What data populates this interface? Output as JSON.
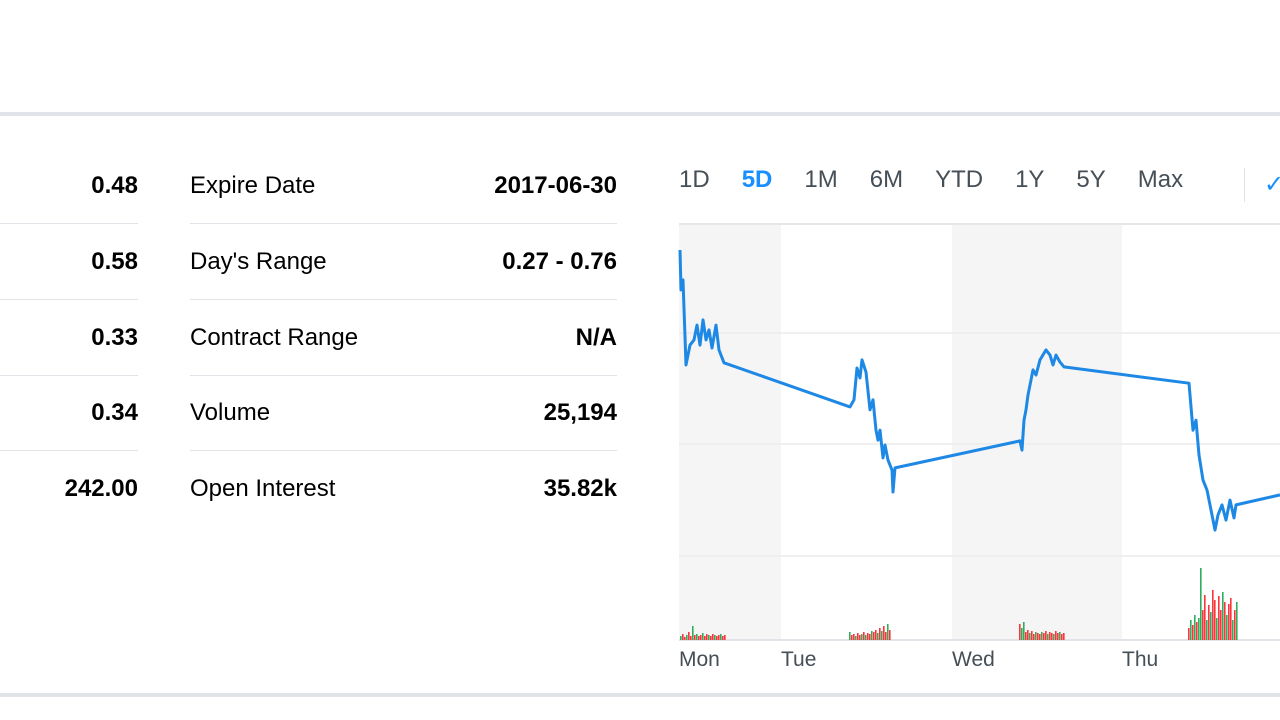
{
  "left_stats": [
    "0.48",
    "0.58",
    "0.33",
    "0.34",
    "242.00"
  ],
  "middle_stats": [
    {
      "label": "Expire Date",
      "value": "2017-06-30"
    },
    {
      "label": "Day's Range",
      "value": "0.27 - 0.76"
    },
    {
      "label": "Contract Range",
      "value": "N/A"
    },
    {
      "label": "Volume",
      "value": "25,194"
    },
    {
      "label": "Open Interest",
      "value": "35.82k"
    }
  ],
  "chart_tabs": [
    "1D",
    "5D",
    "1M",
    "6M",
    "YTD",
    "1Y",
    "5Y",
    "Max"
  ],
  "active_tab": "5D",
  "colors": {
    "accent": "#188fff",
    "line": "#1e88e5",
    "up": "#2eae5c",
    "down": "#ff333a",
    "band": "#f5f5f5"
  },
  "chart_data": {
    "type": "line",
    "title": "",
    "xlabel": "",
    "ylabel": "",
    "x_tick_labels": [
      "Mon",
      "Tue",
      "Wed",
      "Thu"
    ],
    "ylim": [
      0,
      100
    ],
    "grid": true,
    "series": [
      {
        "name": "price",
        "x": [
          1,
          2,
          4,
          7,
          11,
          15,
          18,
          21,
          24,
          27,
          30,
          33,
          37,
          40,
          45,
          171,
          175,
          178,
          181,
          183,
          187,
          191,
          194,
          197,
          199,
          201,
          204,
          206,
          209,
          213,
          214,
          216,
          341,
          343,
          345,
          347,
          349,
          351,
          354,
          357,
          361,
          367,
          371,
          374,
          377,
          381,
          385,
          510,
          514,
          517,
          520,
          524,
          528,
          531,
          536,
          539,
          543,
          547,
          551,
          555,
          557,
          601
        ],
        "y": [
          94.6,
          83.8,
          86.5,
          63.5,
          68.9,
          70.3,
          74.3,
          68.9,
          75.7,
          70.3,
          73,
          68.1,
          74.3,
          67.6,
          64.1,
          52.2,
          54.1,
          62.7,
          60,
          64.9,
          61.6,
          51.4,
          54.1,
          45.9,
          43.2,
          45.9,
          38.4,
          41.9,
          37.8,
          35.1,
          29.2,
          35.7,
          43,
          40.5,
          48.6,
          51.4,
          55.4,
          58.1,
          62.2,
          60.8,
          64.9,
          67.6,
          66.2,
          63.5,
          66.2,
          64.3,
          63,
          58.6,
          45.9,
          48.6,
          39.2,
          32.4,
          29.7,
          25.7,
          18.9,
          23,
          25.7,
          21.6,
          27,
          22.2,
          25.7,
          28.4
        ]
      }
    ],
    "volume_clusters": [
      {
        "start": 1,
        "heights": [
          4,
          6,
          3,
          5,
          8,
          4,
          14,
          5,
          6,
          4,
          5,
          7,
          4,
          6,
          5,
          4,
          6,
          5,
          4,
          5,
          6,
          4,
          5
        ],
        "up": [
          1,
          0,
          0,
          1,
          0,
          0,
          1,
          0,
          1,
          0,
          0,
          1,
          0,
          0,
          1,
          0,
          0,
          1,
          0,
          0,
          1,
          0,
          0
        ]
      },
      {
        "start": 170,
        "heights": [
          8,
          5,
          6,
          4,
          7,
          5,
          6,
          8,
          5,
          7,
          6,
          9,
          8,
          10,
          7,
          12,
          9,
          14,
          8,
          16,
          10
        ],
        "up": [
          1,
          0,
          0,
          1,
          0,
          0,
          1,
          0,
          1,
          0,
          0,
          1,
          0,
          0,
          1,
          0,
          1,
          0,
          0,
          1,
          0
        ]
      },
      {
        "start": 340,
        "heights": [
          16,
          12,
          18,
          8,
          10,
          7,
          9,
          6,
          8,
          7,
          6,
          8,
          7,
          9,
          6,
          8,
          7,
          6,
          9,
          7,
          8,
          6,
          7
        ],
        "up": [
          0,
          1,
          1,
          0,
          0,
          1,
          0,
          0,
          1,
          0,
          0,
          1,
          0,
          0,
          1,
          0,
          0,
          1,
          0,
          0,
          1,
          0,
          0
        ]
      },
      {
        "start": 509,
        "heights": [
          12,
          20,
          15,
          25,
          18,
          22,
          72,
          30,
          45,
          20,
          35,
          28,
          50,
          40,
          22,
          44,
          30,
          48,
          38,
          25,
          36,
          42,
          20,
          30,
          38
        ],
        "up": [
          0,
          1,
          0,
          1,
          0,
          1,
          1,
          0,
          0,
          1,
          0,
          1,
          0,
          0,
          1,
          0,
          0,
          1,
          0,
          1,
          0,
          0,
          1,
          0,
          1
        ]
      }
    ]
  }
}
